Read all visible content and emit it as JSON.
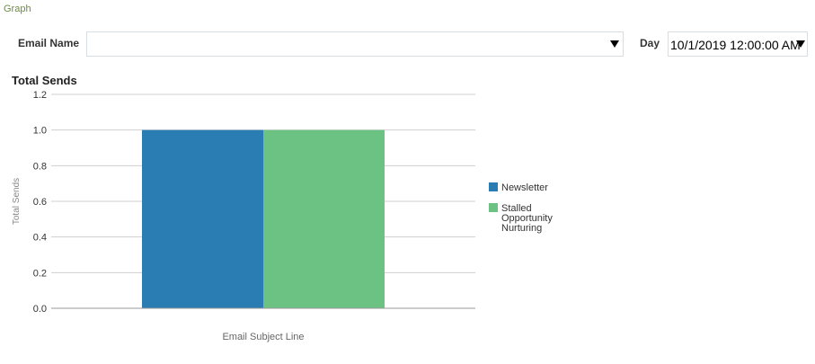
{
  "header": {
    "graph_label": "Graph"
  },
  "filters": {
    "email_name": {
      "label": "Email Name",
      "value": ""
    },
    "day": {
      "label": "Day",
      "value": "10/1/2019 12:00:00 AM"
    }
  },
  "chart_data": {
    "type": "bar",
    "title": "Total Sends",
    "xlabel": "Email Subject Line",
    "ylabel": "Total Sends",
    "ylim": [
      0,
      1.2
    ],
    "yticks": [
      "0.0",
      "0.2",
      "0.4",
      "0.6",
      "0.8",
      "1.0",
      "1.2"
    ],
    "grid": true,
    "legend_position": "right",
    "series": [
      {
        "name": "Newsletter",
        "values": [
          1.0
        ],
        "color": "#2a7db3"
      },
      {
        "name": "Stalled Opportunity Nurturing",
        "values": [
          1.0
        ],
        "color": "#6cc283"
      }
    ]
  }
}
